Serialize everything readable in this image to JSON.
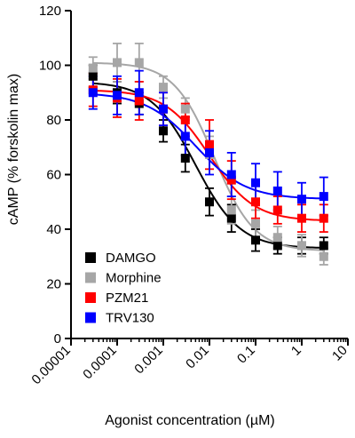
{
  "chart_data": {
    "type": "scatter",
    "xlabel": "Agonist concentration (µM)",
    "ylabel": "cAMP (% forskolin max)",
    "x_scale": "log",
    "xlim": [
      1e-05,
      10
    ],
    "ylim": [
      0,
      120
    ],
    "x_ticks": [
      1e-05,
      0.0001,
      0.001,
      0.01,
      0.1,
      1,
      10
    ],
    "x_tick_labels": [
      "0.00001",
      "0.0001",
      "0.001",
      "0.01",
      "0.1",
      "1",
      "10"
    ],
    "y_ticks": [
      0,
      20,
      40,
      60,
      80,
      100,
      120
    ],
    "y_tick_labels": [
      "0",
      "20",
      "40",
      "60",
      "80",
      "100",
      "120"
    ],
    "legend_position": "bottom-left",
    "grid": false,
    "series": [
      {
        "name": "DAMGO",
        "color": "#000000",
        "x": [
          3e-05,
          0.0001,
          0.0003,
          0.001,
          0.003,
          0.01,
          0.03,
          0.1,
          0.3,
          1,
          3
        ],
        "y": [
          96,
          90,
          86,
          76,
          66,
          50,
          44,
          36,
          34,
          34,
          34
        ],
        "err": [
          4,
          4,
          4,
          4,
          5,
          5,
          5,
          4,
          3,
          3,
          3
        ],
        "fit": {
          "top": 94,
          "bottom": 33,
          "log_ec50": -2.3,
          "hill": 0.9
        }
      },
      {
        "name": "Morphine",
        "color": "#a6a6a6",
        "x": [
          3e-05,
          0.0001,
          0.0003,
          0.001,
          0.003,
          0.01,
          0.03,
          0.1,
          0.3,
          1,
          3
        ],
        "y": [
          99,
          101,
          101,
          92,
          84,
          70,
          47,
          42,
          37,
          34,
          30
        ],
        "err": [
          4,
          7,
          7,
          4,
          4,
          4,
          5,
          5,
          4,
          4,
          3
        ],
        "fit": {
          "top": 101,
          "bottom": 32,
          "log_ec50": -1.9,
          "hill": 1.0
        }
      },
      {
        "name": "PZM21",
        "color": "#ff0000",
        "x": [
          3e-05,
          0.0001,
          0.0003,
          0.001,
          0.003,
          0.01,
          0.03,
          0.1,
          0.3,
          1,
          3
        ],
        "y": [
          91,
          88,
          87,
          84,
          80,
          71,
          58,
          50,
          47,
          44,
          44
        ],
        "err": [
          6,
          7,
          7,
          6,
          6,
          9,
          7,
          6,
          5,
          5,
          5
        ],
        "fit": {
          "top": 91,
          "bottom": 43,
          "log_ec50": -2.0,
          "hill": 0.9
        }
      },
      {
        "name": "TRV130",
        "color": "#0000ff",
        "x": [
          3e-05,
          0.0001,
          0.0003,
          0.001,
          0.003,
          0.01,
          0.03,
          0.1,
          0.3,
          1,
          3
        ],
        "y": [
          90,
          89,
          90,
          84,
          74,
          68,
          60,
          57,
          54,
          51,
          52
        ],
        "err": [
          6,
          7,
          8,
          6,
          7,
          8,
          8,
          7,
          7,
          6,
          7
        ],
        "fit": {
          "top": 90,
          "bottom": 51,
          "log_ec50": -2.3,
          "hill": 0.8
        }
      }
    ]
  }
}
